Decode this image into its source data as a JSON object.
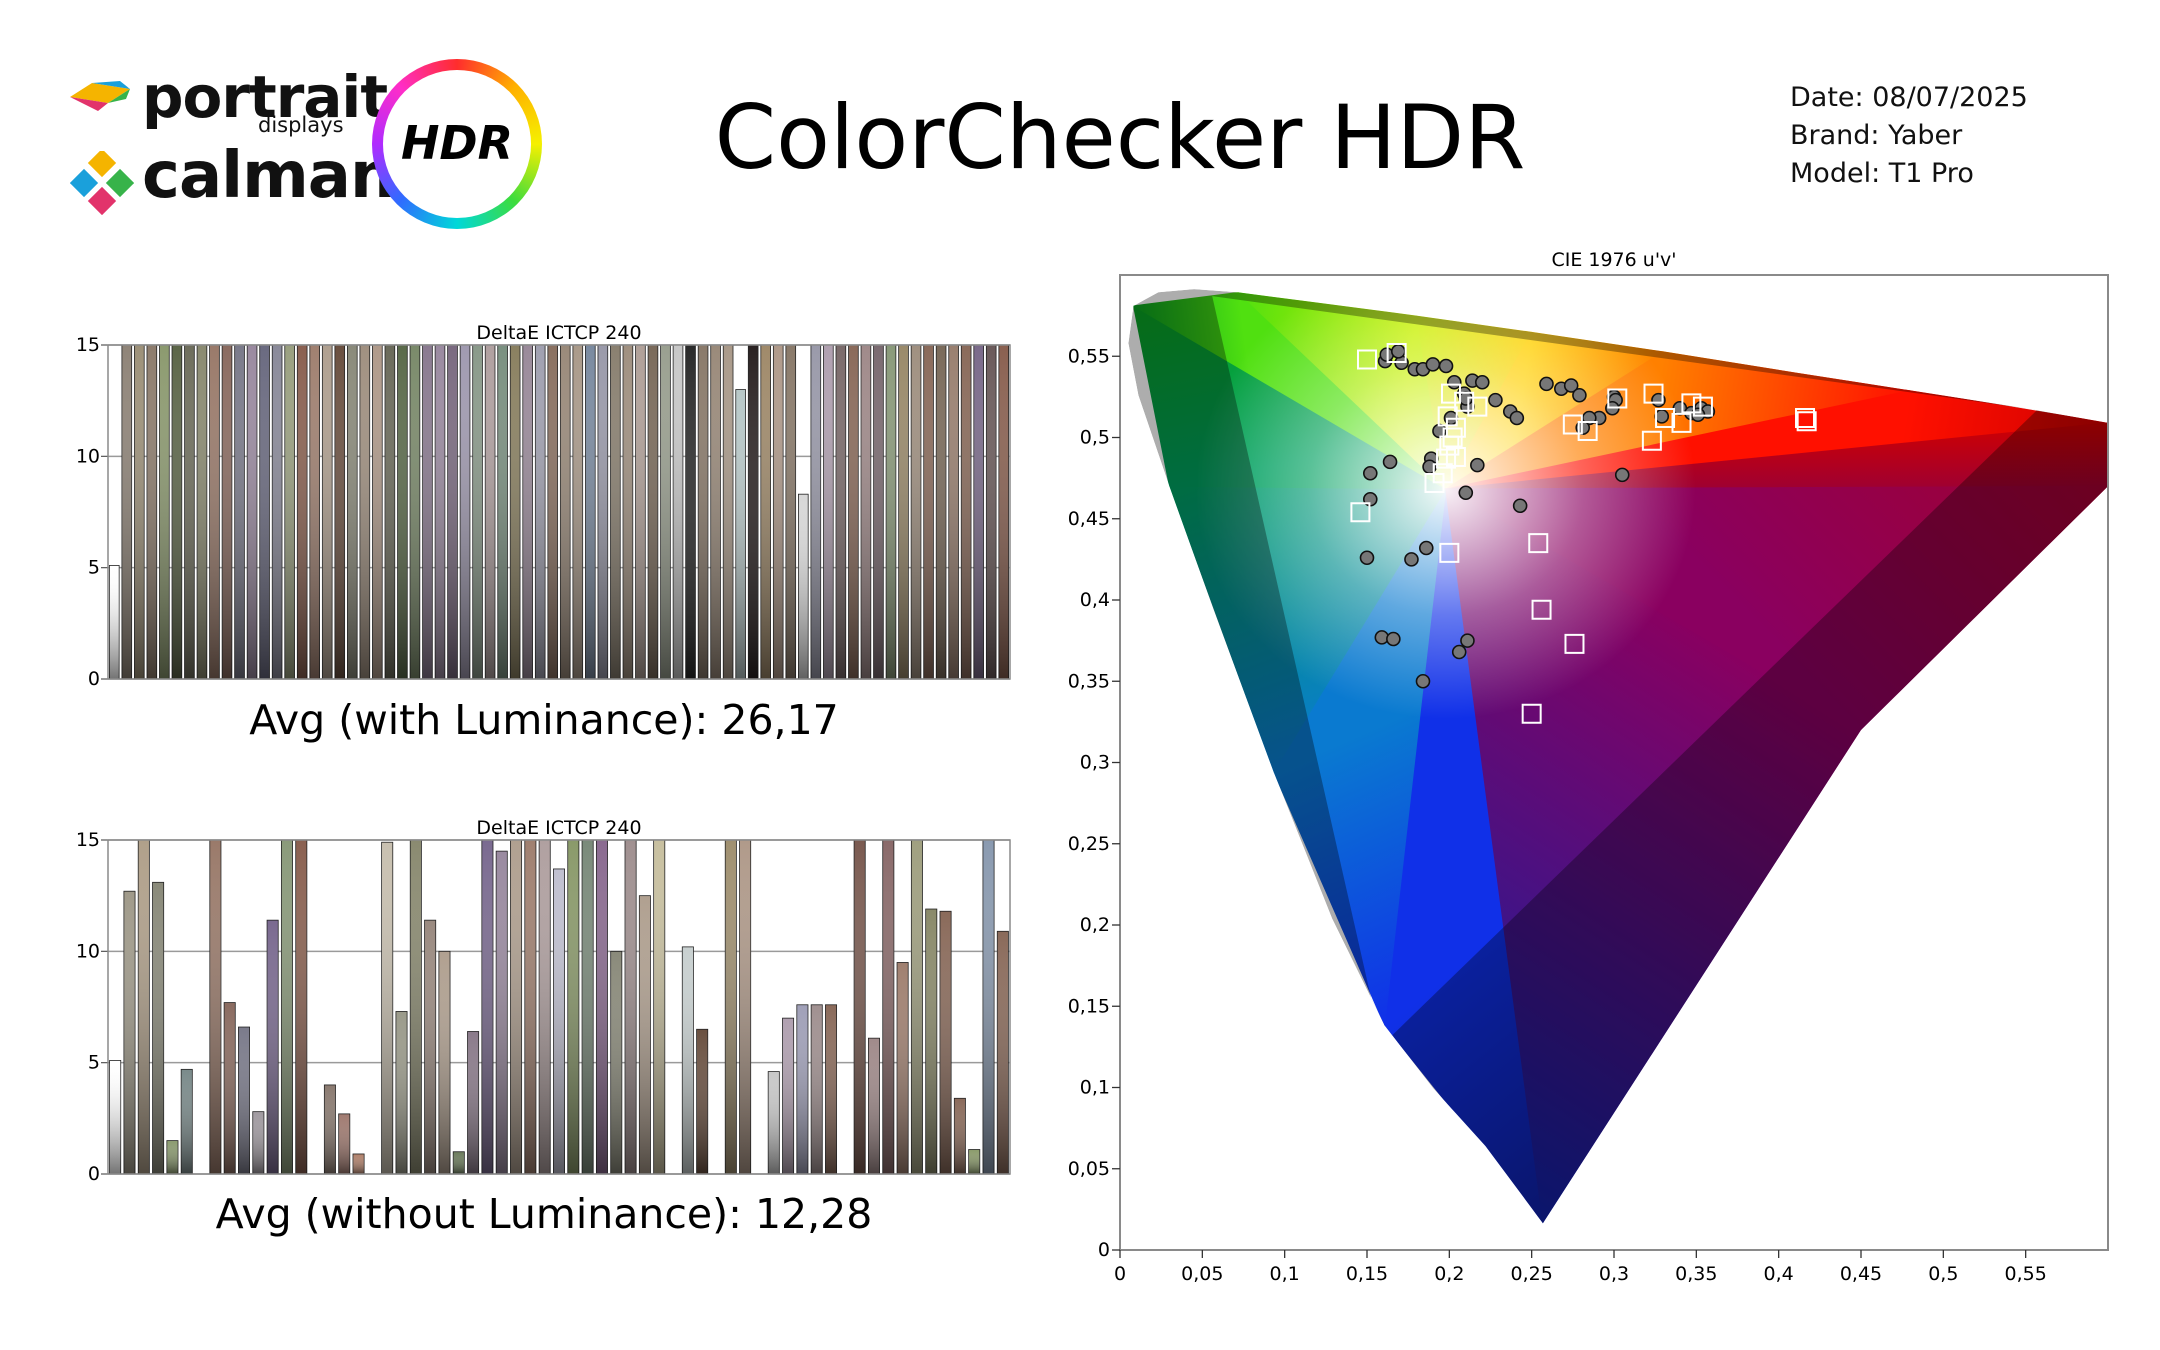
{
  "header": {
    "brand_portrait": "portrait",
    "brand_displays": "displays",
    "brand_calman": "calman",
    "hdr_badge": "HDR",
    "title": "ColorChecker HDR",
    "date": "Date: 08/07/2025",
    "brand": "Brand: Yaber",
    "model": "Model: T1 Pro"
  },
  "captions": {
    "avg_with_luminance": "Avg (with Luminance): 26,17",
    "avg_without_luminance": "Avg (without Luminance): 12,28"
  },
  "chart_data": [
    {
      "type": "bar",
      "title": "DeltaE ICTCP 240",
      "ylim": [
        0,
        15
      ],
      "yticks": [
        "0",
        "5",
        "10",
        "15"
      ],
      "values": [
        5.1,
        15,
        15,
        15,
        15,
        15,
        15,
        15,
        15,
        15,
        15,
        15,
        15,
        15,
        15,
        15,
        15,
        15,
        15,
        15,
        15,
        15,
        15,
        15,
        15,
        15,
        15,
        15,
        15,
        15,
        15,
        15,
        15,
        15,
        15,
        15,
        15,
        15,
        15,
        15,
        15,
        15,
        15,
        15,
        15,
        15,
        15,
        15,
        15,
        15,
        13,
        15,
        15,
        15,
        15,
        8.3,
        15,
        15,
        15,
        15,
        15,
        15,
        15,
        15,
        15,
        15,
        15,
        15,
        15,
        15,
        15,
        15
      ],
      "colors": [
        "#ffffff",
        "#8f8478",
        "#9d9179",
        "#8d7c6c",
        "#8c9a6f",
        "#5c6648",
        "#6e6e5c",
        "#8a8a70",
        "#9a7a6a",
        "#8b6b60",
        "#7a7a8a",
        "#9a8aa0",
        "#6a6a80",
        "#8a8a9a",
        "#9aa080",
        "#8a6050",
        "#a08070",
        "#b0a090",
        "#6a5040",
        "#8a8a7a",
        "#a09080",
        "#b09a8a",
        "#6a6a5a",
        "#5a6a4a",
        "#7a8a6a",
        "#8a7a90",
        "#9a8aa0",
        "#7a6a80",
        "#a09ab0",
        "#8a9a8a",
        "#b0a0a0",
        "#7a9080",
        "#8a8060",
        "#9a8a9a",
        "#a0a0b0",
        "#8a7060",
        "#9a8a7a",
        "#aa9a8a",
        "#7a8aa0",
        "#9a9aaa",
        "#8a8070",
        "#a09080",
        "#b0a098",
        "#7a6a5a",
        "#9aa090",
        "#c8c8c8",
        "#2a2a2a",
        "#8a7a6a",
        "#9a8a7a",
        "#aa9a8a",
        "#b8c8c8",
        "#2a2222",
        "#a08a6a",
        "#b09a8a",
        "#8a7a6a",
        "#d8d8d8",
        "#9a9aaa",
        "#b0a0b0",
        "#7a6a6a",
        "#8a6a5a",
        "#a08a8a",
        "#7a6a70",
        "#8a9a7a",
        "#9a8a6a",
        "#a09080",
        "#8a6a5a",
        "#7a6a5a",
        "#9a8070",
        "#8a6a5a",
        "#7a6a8a",
        "#6a5a5a",
        "#8a6050"
      ]
    },
    {
      "type": "bar",
      "title": "DeltaE ICTCP 240",
      "ylim": [
        0,
        15
      ],
      "yticks": [
        "0",
        "5",
        "10",
        "15"
      ],
      "values": [
        5.1,
        12.7,
        15,
        13.1,
        1.5,
        4.7,
        0,
        15,
        7.7,
        6.6,
        2.8,
        11.4,
        15,
        15,
        0,
        4,
        2.7,
        0.9,
        0,
        14.9,
        7.3,
        15,
        11.4,
        10,
        1,
        6.4,
        15,
        14.5,
        15,
        15,
        15,
        13.7,
        15,
        15,
        15,
        10,
        15,
        12.5,
        15,
        0,
        10.2,
        6.5,
        0,
        15,
        15,
        0,
        4.6,
        7,
        7.6,
        7.6,
        7.6,
        0,
        15,
        6.1,
        15,
        9.5,
        15,
        11.9,
        11.8,
        3.4,
        1.1,
        15,
        10.9
      ],
      "colors": [
        "#ffffff",
        "#a09a8a",
        "#b0a08a",
        "#8a8a7a",
        "#8a9a6f",
        "#7a8a8a",
        "#ffffff",
        "#9a7a6a",
        "#8a6b60",
        "#7a7a8a",
        "#a09aa0",
        "#7a6a90",
        "#8a9a7a",
        "#8a6050",
        "#ffffff",
        "#8a7a70",
        "#a07a70",
        "#b0806a",
        "#ffffff",
        "#c8c0b0",
        "#9a9a8a",
        "#8a8a70",
        "#9a8a80",
        "#b0a090",
        "#6a7a5a",
        "#8a7a8a",
        "#7a6a90",
        "#9a8aa0",
        "#b0a090",
        "#a08070",
        "#b0a0a0",
        "#c0c0d0",
        "#8a9a6a",
        "#7a8a7a",
        "#8a6a90",
        "#8a8a7a",
        "#a09090",
        "#b0a090",
        "#c8c0a0",
        "#ffffff",
        "#c8d0d0",
        "#6a5040",
        "#ffffff",
        "#a09070",
        "#b09a8a",
        "#ffffff",
        "#c8c8c8",
        "#b0a0b0",
        "#a0a0b8",
        "#a09090",
        "#8a6a5a",
        "#ffffff",
        "#7a5a50",
        "#a08a8a",
        "#8a6a6a",
        "#a08070",
        "#a0a080",
        "#8a8a6a",
        "#8a6a5a",
        "#8a6a5a",
        "#8a9a6a",
        "#8a9ab0",
        "#8a6a5a"
      ]
    },
    {
      "type": "scatter",
      "title": "CIE 1976 u'v'",
      "xlim": [
        0,
        0.6
      ],
      "ylim": [
        0,
        0.6
      ],
      "xticks": [
        "0",
        "0,05",
        "0,1",
        "0,15",
        "0,2",
        "0,25",
        "0,3",
        "0,35",
        "0,4",
        "0,45",
        "0,5",
        "0,55"
      ],
      "yticks": [
        "0",
        "0,05",
        "0,1",
        "0,15",
        "0,2",
        "0,25",
        "0,3",
        "0,35",
        "0,4",
        "0,45",
        "0,5",
        "0,55"
      ],
      "gamut_primaries": [
        [
          0.557,
          0.517
        ],
        [
          0.056,
          0.587
        ],
        [
          0.159,
          0.126
        ]
      ],
      "series": [
        {
          "marker": "circle",
          "points": [
            [
              0.161,
              0.547
            ],
            [
              0.162,
              0.551
            ],
            [
              0.171,
              0.546
            ],
            [
              0.179,
              0.542
            ],
            [
              0.184,
              0.542
            ],
            [
              0.19,
              0.545
            ],
            [
              0.198,
              0.544
            ],
            [
              0.169,
              0.553
            ],
            [
              0.203,
              0.534
            ],
            [
              0.209,
              0.527
            ],
            [
              0.214,
              0.535
            ],
            [
              0.22,
              0.534
            ],
            [
              0.211,
              0.519
            ],
            [
              0.21,
              0.524
            ],
            [
              0.201,
              0.512
            ],
            [
              0.194,
              0.504
            ],
            [
              0.228,
              0.523
            ],
            [
              0.237,
              0.516
            ],
            [
              0.241,
              0.512
            ],
            [
              0.259,
              0.533
            ],
            [
              0.268,
              0.53
            ],
            [
              0.274,
              0.532
            ],
            [
              0.279,
              0.526
            ],
            [
              0.3,
              0.525
            ],
            [
              0.301,
              0.523
            ],
            [
              0.299,
              0.518
            ],
            [
              0.291,
              0.512
            ],
            [
              0.285,
              0.512
            ],
            [
              0.281,
              0.506
            ],
            [
              0.327,
              0.523
            ],
            [
              0.34,
              0.518
            ],
            [
              0.347,
              0.515
            ],
            [
              0.353,
              0.518
            ],
            [
              0.357,
              0.516
            ],
            [
              0.351,
              0.514
            ],
            [
              0.329,
              0.513
            ],
            [
              0.305,
              0.477
            ],
            [
              0.217,
              0.483
            ],
            [
              0.243,
              0.458
            ],
            [
              0.21,
              0.466
            ],
            [
              0.189,
              0.487
            ],
            [
              0.188,
              0.482
            ],
            [
              0.164,
              0.485
            ],
            [
              0.152,
              0.478
            ],
            [
              0.152,
              0.462
            ],
            [
              0.15,
              0.426
            ],
            [
              0.186,
              0.432
            ],
            [
              0.177,
              0.425
            ],
            [
              0.159,
              0.377
            ],
            [
              0.166,
              0.376
            ],
            [
              0.211,
              0.375
            ],
            [
              0.206,
              0.368
            ],
            [
              0.184,
              0.35
            ]
          ]
        },
        {
          "marker": "square",
          "points": [
            [
              0.15,
              0.548
            ],
            [
              0.168,
              0.552
            ],
            [
              0.201,
              0.527
            ],
            [
              0.209,
              0.522
            ],
            [
              0.217,
              0.519
            ],
            [
              0.199,
              0.513
            ],
            [
              0.204,
              0.506
            ],
            [
              0.202,
              0.5
            ],
            [
              0.2,
              0.495
            ],
            [
              0.204,
              0.488
            ],
            [
              0.198,
              0.487
            ],
            [
              0.196,
              0.478
            ],
            [
              0.191,
              0.472
            ],
            [
              0.146,
              0.454
            ],
            [
              0.2,
              0.429
            ],
            [
              0.254,
              0.435
            ],
            [
              0.256,
              0.394
            ],
            [
              0.276,
              0.373
            ],
            [
              0.25,
              0.33
            ],
            [
              0.275,
              0.508
            ],
            [
              0.284,
              0.504
            ],
            [
              0.302,
              0.524
            ],
            [
              0.324,
              0.527
            ],
            [
              0.331,
              0.512
            ],
            [
              0.323,
              0.498
            ],
            [
              0.347,
              0.521
            ],
            [
              0.354,
              0.519
            ],
            [
              0.341,
              0.509
            ],
            [
              0.416,
              0.512
            ],
            [
              0.417,
              0.51
            ]
          ]
        }
      ]
    }
  ]
}
